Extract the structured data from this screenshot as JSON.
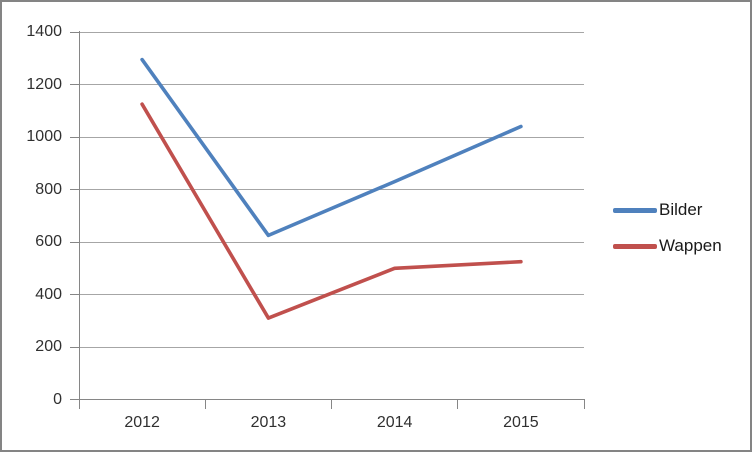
{
  "chart_data": {
    "type": "line",
    "categories": [
      "2012",
      "2013",
      "2014",
      "2015"
    ],
    "series": [
      {
        "name": "Bilder",
        "color": "#4F81BD",
        "values": [
          1295,
          625,
          830,
          1040
        ]
      },
      {
        "name": "Wappen",
        "color": "#C0504D",
        "values": [
          1125,
          310,
          500,
          525
        ]
      }
    ],
    "yticks": [
      0,
      200,
      400,
      600,
      800,
      1000,
      1200,
      1400
    ],
    "ylim": [
      0,
      1400
    ],
    "xlabel": "",
    "ylabel": "",
    "grid": true,
    "legend_position": "right"
  },
  "colors": {
    "series_bilder": "#4F81BD",
    "series_wappen": "#C0504D",
    "axis_line": "#868686",
    "gridline": "#A6A6A6",
    "tick_label_text": "#303030",
    "legend_text": "#1a1a1a",
    "chart_border": "#848484",
    "background": "#FFFFFF"
  }
}
